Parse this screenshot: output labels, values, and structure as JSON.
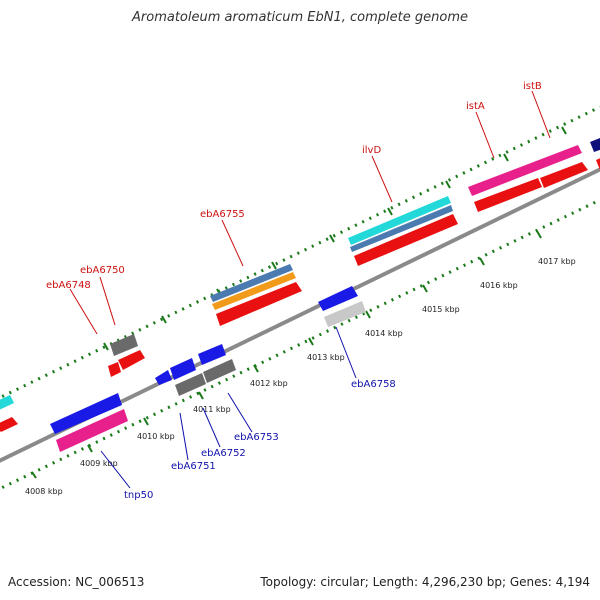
{
  "title": "Aromatoleum aromaticum EbN1, complete genome",
  "footer": {
    "accession": "Accession: NC_006513",
    "summary": "Topology: circular; Length: 4,296,230 bp; Genes: 4,194"
  },
  "kbp_labels": [
    "4008 kbp",
    "4009 kbp",
    "4010 kbp",
    "4011 kbp",
    "4012 kbp",
    "4013 kbp",
    "4014 kbp",
    "4015 kbp",
    "4016 kbp",
    "4017 kbp"
  ],
  "gene_labels_red": [
    "ebA6748",
    "ebA6750",
    "ebA6755",
    "ilvD",
    "istA",
    "istB"
  ],
  "gene_labels_blue": [
    "tnp50",
    "ebA6751",
    "ebA6752",
    "ebA6753",
    "ebA6758"
  ],
  "colors": {
    "red": "#e81010",
    "blue": "#1a1ae6",
    "magenta": "#e8208c",
    "gray": "#6a6a6a",
    "light_gray": "#c8c8c8",
    "cyan": "#22d8d8",
    "steel": "#4a7ab0",
    "orange": "#f29a1a",
    "navy": "#10107a",
    "tick": "#1a7a1a",
    "backbone": "#8a8a8a",
    "red_label": "#cc1111",
    "blue_label": "#1111aa"
  }
}
